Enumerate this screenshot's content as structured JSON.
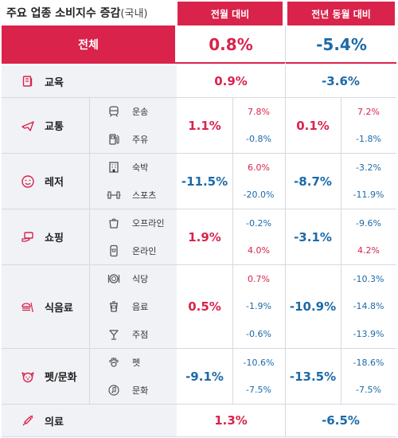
{
  "title": "주요 업종 소비지수 증감",
  "title_sub": "(국내)",
  "headers": {
    "mom": "전월 대비",
    "yoy": "전년 동월 대비"
  },
  "colors": {
    "accent": "#d9234b",
    "positive": "#d9234b",
    "negative": "#1c6aa8",
    "band": "#f0f2f6"
  },
  "chart_data": {
    "type": "table",
    "title": "주요 업종 소비지수 증감(국내)",
    "columns": [
      "전월 대비",
      "전년 동월 대비"
    ],
    "total": {
      "label": "전체",
      "mom": "0.8%",
      "yoy": "-5.4%"
    },
    "categories": [
      {
        "label": "교육",
        "icon": "book-icon",
        "mom": "0.9%",
        "yoy": "-3.6%",
        "items": []
      },
      {
        "label": "교통",
        "icon": "airplane-icon",
        "mom": "1.1%",
        "yoy": "0.1%",
        "items": [
          {
            "label": "운송",
            "icon": "train-icon",
            "mom": "7.8%",
            "yoy": "7.2%"
          },
          {
            "label": "주유",
            "icon": "fuel-pump-icon",
            "mom": "-0.8%",
            "yoy": "-1.8%"
          }
        ]
      },
      {
        "label": "레저",
        "icon": "smile-icon",
        "mom": "-11.5%",
        "yoy": "-8.7%",
        "items": [
          {
            "label": "숙박",
            "icon": "building-icon",
            "mom": "6.0%",
            "yoy": "-3.2%"
          },
          {
            "label": "스포츠",
            "icon": "dumbbell-icon",
            "mom": "-20.0%",
            "yoy": "-11.9%"
          }
        ]
      },
      {
        "label": "쇼핑",
        "icon": "card-hand-icon",
        "mom": "1.9%",
        "yoy": "-3.1%",
        "items": [
          {
            "label": "오프라인",
            "icon": "shopping-bag-icon",
            "mom": "-0.2%",
            "yoy": "-9.6%"
          },
          {
            "label": "온라인",
            "icon": "phone-shop-icon",
            "mom": "4.0%",
            "yoy": "4.2%"
          }
        ]
      },
      {
        "label": "식음료",
        "icon": "burger-drink-icon",
        "mom": "0.5%",
        "yoy": "-10.9%",
        "items": [
          {
            "label": "식당",
            "icon": "plate-icon",
            "mom": "0.7%",
            "yoy": "-10.3%"
          },
          {
            "label": "음료",
            "icon": "coffee-cup-icon",
            "mom": "-1.9%",
            "yoy": "-14.8%"
          },
          {
            "label": "주점",
            "icon": "cocktail-icon",
            "mom": "-0.6%",
            "yoy": "-13.9%"
          }
        ]
      },
      {
        "label": "펫/문화",
        "icon": "dog-icon",
        "mom": "-9.1%",
        "yoy": "-13.5%",
        "items": [
          {
            "label": "펫",
            "icon": "paw-icon",
            "mom": "-10.6%",
            "yoy": "-18.6%"
          },
          {
            "label": "문화",
            "icon": "music-icon",
            "mom": "-7.5%",
            "yoy": "-7.5%"
          }
        ]
      },
      {
        "label": "의료",
        "icon": "syringe-icon",
        "mom": "1.3%",
        "yoy": "-6.5%",
        "items": []
      }
    ]
  }
}
